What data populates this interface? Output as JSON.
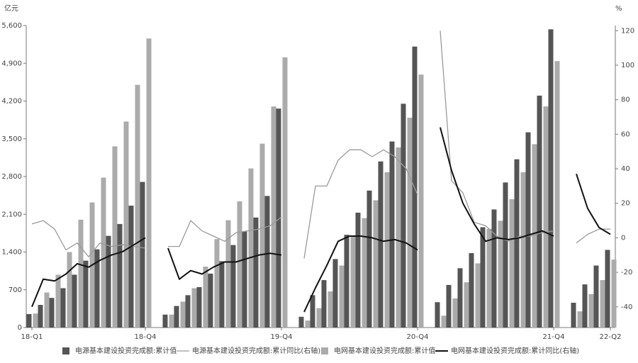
{
  "chart_data": {
    "type": "combo",
    "y_unit": "亿元",
    "y2_unit": "%",
    "categories": [
      "18-Q1",
      null,
      null,
      null,
      null,
      null,
      null,
      null,
      null,
      null,
      "18-Q4",
      null,
      null,
      null,
      null,
      null,
      null,
      null,
      null,
      null,
      null,
      null,
      "19-Q4",
      null,
      null,
      null,
      null,
      null,
      null,
      null,
      null,
      null,
      null,
      null,
      "20-Q4",
      null,
      null,
      null,
      null,
      null,
      null,
      null,
      null,
      null,
      null,
      null,
      "21-Q4",
      null,
      null,
      null,
      null,
      "22-Q2"
    ],
    "ylim": [
      0,
      5600
    ],
    "yticks": [
      0,
      700,
      {
        "value": 1400,
        "label": "1,400"
      },
      {
        "value": 2100,
        "label": "2,100"
      },
      {
        "value": 2800,
        "label": "2,800"
      },
      {
        "value": 3500,
        "label": "3,500"
      },
      {
        "value": 4200,
        "label": "4,200"
      },
      {
        "value": 4900,
        "label": "4,900"
      },
      {
        "value": 5600,
        "label": "5,600"
      }
    ],
    "y2lim": [
      -52,
      123
    ],
    "y2ticks": [
      -40,
      -20,
      0,
      20,
      40,
      60,
      80,
      100,
      120
    ],
    "series": [
      {
        "name": "电源基本建设投资完成额:累计值",
        "type": "bar",
        "color": "#555555",
        "values": [
          250,
          420,
          550,
          730,
          980,
          1240,
          1450,
          1700,
          1920,
          2260,
          2700,
          null,
          240,
          400,
          600,
          750,
          1000,
          1230,
          1530,
          1780,
          2040,
          2440,
          4060,
          null,
          200,
          600,
          880,
          1270,
          1720,
          2130,
          2540,
          3080,
          3450,
          4150,
          5210,
          null,
          470,
          790,
          1100,
          1380,
          1860,
          2190,
          2690,
          3120,
          3620,
          4300,
          5530,
          null,
          460,
          800,
          1150,
          1440
        ]
      },
      {
        "name": "电源基本建设投资完成额:累计同比(右轴)",
        "type": "line",
        "axis": "y2",
        "color": "#9a9a9a",
        "values": [
          8,
          10,
          5,
          -7,
          -3,
          -11,
          -3,
          -5,
          -4,
          -5,
          -6,
          null,
          -5,
          -5,
          10,
          4,
          1,
          -2,
          3,
          4,
          5,
          7,
          12,
          null,
          -12,
          30,
          30,
          45,
          51,
          51,
          47,
          51,
          47,
          40,
          25,
          null,
          120,
          33,
          26,
          9,
          7,
          1,
          -2,
          1,
          1,
          3,
          4,
          null,
          -3,
          2,
          5,
          5
        ]
      },
      {
        "name": "电网基本建设投资完成额:累计值",
        "type": "bar",
        "color": "#ababab",
        "values": [
          260,
          650,
          980,
          1400,
          2000,
          2320,
          2780,
          3360,
          3820,
          4500,
          5360,
          null,
          240,
          480,
          730,
          1130,
          1640,
          1990,
          2340,
          2950,
          3410,
          4100,
          5010,
          null,
          130,
          360,
          670,
          1150,
          1700,
          2030,
          2360,
          2880,
          3340,
          3890,
          4690,
          null,
          220,
          540,
          840,
          1190,
          1830,
          1980,
          2380,
          2880,
          3400,
          4100,
          4940,
          null,
          300,
          620,
          880,
          1260
        ]
      },
      {
        "name": "电网基本建设投资完成额:累计同比(右轴)",
        "type": "line",
        "axis": "y2",
        "color": "#111111",
        "values": [
          -40,
          -24,
          -25,
          -21,
          -15,
          -17,
          -13,
          -10,
          -8,
          -4,
          0,
          null,
          -6,
          -24,
          -19,
          -21,
          -17,
          -14,
          -14,
          -12,
          -10,
          -9,
          -10,
          null,
          -43,
          -29,
          -16,
          -2,
          1,
          1,
          0,
          -2,
          -1,
          -3,
          -7,
          null,
          64,
          39,
          20,
          8,
          -2,
          0,
          -1,
          0,
          2,
          4,
          1,
          null,
          37,
          17,
          6,
          2
        ]
      }
    ]
  }
}
